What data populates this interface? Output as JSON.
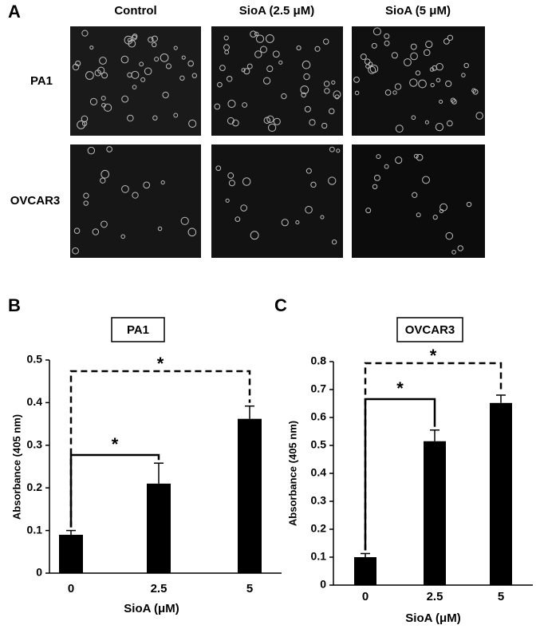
{
  "figure": {
    "panel_labels": [
      "A",
      "B",
      "C"
    ],
    "columns": [
      "Control",
      "SioA (2.5 μM)",
      "SioA (5 μM)"
    ],
    "rows": [
      "PA1",
      "OVCAR3"
    ]
  },
  "chart_data": [
    {
      "type": "bar",
      "title": "PA1",
      "categories": [
        "0",
        "2.5",
        "5"
      ],
      "values": [
        0.09,
        0.21,
        0.362
      ],
      "errors": [
        0.01,
        0.048,
        0.03
      ],
      "color": "#000000",
      "x_label": "SioA  (μM)",
      "y_label": "Absorbance (405 nm)",
      "ylim": [
        0,
        0.5
      ],
      "yticks": [
        0,
        0.1,
        0.2,
        0.3,
        0.4,
        0.5
      ],
      "annotations": [
        "*",
        "*"
      ]
    },
    {
      "type": "bar",
      "title": "OVCAR3",
      "categories": [
        "0",
        "2.5",
        "5"
      ],
      "values": [
        0.1,
        0.515,
        0.652
      ],
      "errors": [
        0.013,
        0.04,
        0.028
      ],
      "color": "#000000",
      "x_label": "SioA  (μM)",
      "y_label": "Absorbance (405 nm)",
      "ylim": [
        0,
        0.8
      ],
      "yticks": [
        0,
        0.1,
        0.2,
        0.3,
        0.4,
        0.5,
        0.6,
        0.7,
        0.8
      ],
      "annotations": [
        "*",
        "*"
      ]
    }
  ]
}
